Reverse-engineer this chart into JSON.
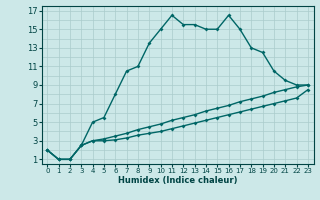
{
  "xlabel": "Humidex (Indice chaleur)",
  "bg_color": "#cce8e8",
  "grid_color": "#aacccc",
  "line_color": "#006666",
  "xlim": [
    -0.5,
    23.5
  ],
  "ylim": [
    0.5,
    17.5
  ],
  "xticks": [
    0,
    1,
    2,
    3,
    4,
    5,
    6,
    7,
    8,
    9,
    10,
    11,
    12,
    13,
    14,
    15,
    16,
    17,
    18,
    19,
    20,
    21,
    22,
    23
  ],
  "yticks": [
    1,
    3,
    5,
    7,
    9,
    11,
    13,
    15,
    17
  ],
  "series1_x": [
    0,
    1,
    2,
    3,
    4,
    5,
    6,
    7,
    8,
    9,
    10,
    11,
    12,
    13,
    14,
    15,
    16,
    17,
    18,
    19,
    20,
    21,
    22,
    23
  ],
  "series1_y": [
    2,
    1,
    1,
    2.5,
    5,
    5.5,
    8,
    10.5,
    11,
    13.5,
    15,
    16.5,
    15.5,
    15.5,
    15,
    15,
    16.5,
    15,
    13,
    12.5,
    10.5,
    9.5,
    9,
    9
  ],
  "series2_x": [
    0,
    1,
    2,
    3,
    4,
    5,
    6,
    7,
    8,
    9,
    10,
    11,
    12,
    13,
    14,
    15,
    16,
    17,
    18,
    19,
    20,
    21,
    22,
    23
  ],
  "series2_y": [
    2,
    1,
    1,
    2.5,
    3.0,
    3.2,
    3.5,
    3.8,
    4.2,
    4.5,
    4.8,
    5.2,
    5.5,
    5.8,
    6.2,
    6.5,
    6.8,
    7.2,
    7.5,
    7.8,
    8.2,
    8.5,
    8.8,
    9.0
  ],
  "series3_x": [
    0,
    1,
    2,
    3,
    4,
    5,
    6,
    7,
    8,
    9,
    10,
    11,
    12,
    13,
    14,
    15,
    16,
    17,
    18,
    19,
    20,
    21,
    22,
    23
  ],
  "series3_y": [
    2,
    1,
    1,
    2.5,
    3.0,
    3.0,
    3.1,
    3.3,
    3.6,
    3.8,
    4.0,
    4.3,
    4.6,
    4.9,
    5.2,
    5.5,
    5.8,
    6.1,
    6.4,
    6.7,
    7.0,
    7.3,
    7.6,
    8.5
  ]
}
